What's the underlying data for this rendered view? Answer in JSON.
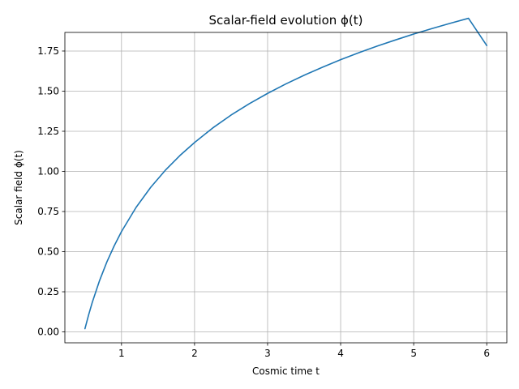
{
  "chart_data": {
    "type": "line",
    "title": "Scalar-field evolution ϕ(t)",
    "xlabel": "Cosmic time t",
    "ylabel": "Scalar field ϕ(t)",
    "xlim": [
      0.225,
      6.275
    ],
    "ylim": [
      -0.068,
      1.866
    ],
    "grid": true,
    "x_ticks": [
      {
        "value": 1,
        "label": "1"
      },
      {
        "value": 2,
        "label": "2"
      },
      {
        "value": 3,
        "label": "3"
      },
      {
        "value": 4,
        "label": "4"
      },
      {
        "value": 5,
        "label": "5"
      },
      {
        "value": 6,
        "label": "6"
      }
    ],
    "y_ticks": [
      {
        "value": 0.0,
        "label": "0.00"
      },
      {
        "value": 0.25,
        "label": "0.25"
      },
      {
        "value": 0.5,
        "label": "0.50"
      },
      {
        "value": 0.75,
        "label": "0.75"
      },
      {
        "value": 1.0,
        "label": "1.00"
      },
      {
        "value": 1.25,
        "label": "1.25"
      },
      {
        "value": 1.5,
        "label": "1.50"
      },
      {
        "value": 1.75,
        "label": "1.75"
      }
    ],
    "series": [
      {
        "color": "#1f77b4",
        "x": [
          0.5,
          0.55,
          0.6,
          0.7,
          0.8,
          0.9,
          1.0,
          1.2,
          1.4,
          1.6,
          1.8,
          2.0,
          2.25,
          2.5,
          2.75,
          3.0,
          3.25,
          3.5,
          3.75,
          4.0,
          4.25,
          4.5,
          4.75,
          5.0,
          5.25,
          5.5,
          5.75,
          6.0
        ],
        "y": [
          0.02,
          0.106,
          0.184,
          0.32,
          0.436,
          0.536,
          0.625,
          0.776,
          0.901,
          1.007,
          1.099,
          1.18,
          1.271,
          1.351,
          1.422,
          1.486,
          1.545,
          1.599,
          1.649,
          1.696,
          1.74,
          1.781,
          1.819,
          1.856,
          1.89,
          1.923,
          1.954,
          1.784
        ]
      }
    ]
  }
}
